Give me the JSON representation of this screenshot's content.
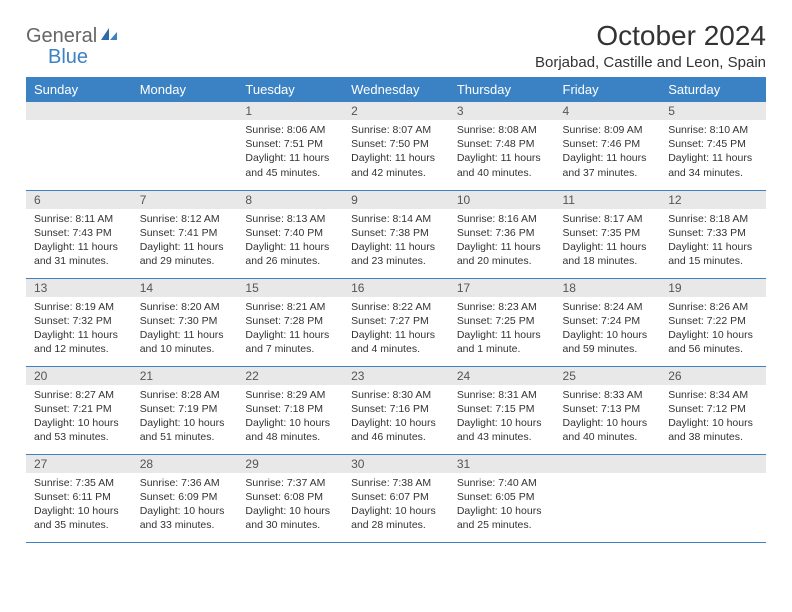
{
  "logo": {
    "part1": "General",
    "part2": "Blue"
  },
  "title": "October 2024",
  "location": "Borjabad, Castille and Leon, Spain",
  "colors": {
    "header_bg": "#3b82c4",
    "header_text": "#ffffff",
    "daynum_bg": "#e8e8e8",
    "border": "#3b82c4",
    "text": "#333333",
    "background": "#ffffff"
  },
  "weekdays": [
    "Sunday",
    "Monday",
    "Tuesday",
    "Wednesday",
    "Thursday",
    "Friday",
    "Saturday"
  ],
  "weeks": [
    [
      {
        "n": "",
        "lines": []
      },
      {
        "n": "",
        "lines": []
      },
      {
        "n": "1",
        "lines": [
          "Sunrise: 8:06 AM",
          "Sunset: 7:51 PM",
          "Daylight: 11 hours",
          "and 45 minutes."
        ]
      },
      {
        "n": "2",
        "lines": [
          "Sunrise: 8:07 AM",
          "Sunset: 7:50 PM",
          "Daylight: 11 hours",
          "and 42 minutes."
        ]
      },
      {
        "n": "3",
        "lines": [
          "Sunrise: 8:08 AM",
          "Sunset: 7:48 PM",
          "Daylight: 11 hours",
          "and 40 minutes."
        ]
      },
      {
        "n": "4",
        "lines": [
          "Sunrise: 8:09 AM",
          "Sunset: 7:46 PM",
          "Daylight: 11 hours",
          "and 37 minutes."
        ]
      },
      {
        "n": "5",
        "lines": [
          "Sunrise: 8:10 AM",
          "Sunset: 7:45 PM",
          "Daylight: 11 hours",
          "and 34 minutes."
        ]
      }
    ],
    [
      {
        "n": "6",
        "lines": [
          "Sunrise: 8:11 AM",
          "Sunset: 7:43 PM",
          "Daylight: 11 hours",
          "and 31 minutes."
        ]
      },
      {
        "n": "7",
        "lines": [
          "Sunrise: 8:12 AM",
          "Sunset: 7:41 PM",
          "Daylight: 11 hours",
          "and 29 minutes."
        ]
      },
      {
        "n": "8",
        "lines": [
          "Sunrise: 8:13 AM",
          "Sunset: 7:40 PM",
          "Daylight: 11 hours",
          "and 26 minutes."
        ]
      },
      {
        "n": "9",
        "lines": [
          "Sunrise: 8:14 AM",
          "Sunset: 7:38 PM",
          "Daylight: 11 hours",
          "and 23 minutes."
        ]
      },
      {
        "n": "10",
        "lines": [
          "Sunrise: 8:16 AM",
          "Sunset: 7:36 PM",
          "Daylight: 11 hours",
          "and 20 minutes."
        ]
      },
      {
        "n": "11",
        "lines": [
          "Sunrise: 8:17 AM",
          "Sunset: 7:35 PM",
          "Daylight: 11 hours",
          "and 18 minutes."
        ]
      },
      {
        "n": "12",
        "lines": [
          "Sunrise: 8:18 AM",
          "Sunset: 7:33 PM",
          "Daylight: 11 hours",
          "and 15 minutes."
        ]
      }
    ],
    [
      {
        "n": "13",
        "lines": [
          "Sunrise: 8:19 AM",
          "Sunset: 7:32 PM",
          "Daylight: 11 hours",
          "and 12 minutes."
        ]
      },
      {
        "n": "14",
        "lines": [
          "Sunrise: 8:20 AM",
          "Sunset: 7:30 PM",
          "Daylight: 11 hours",
          "and 10 minutes."
        ]
      },
      {
        "n": "15",
        "lines": [
          "Sunrise: 8:21 AM",
          "Sunset: 7:28 PM",
          "Daylight: 11 hours",
          "and 7 minutes."
        ]
      },
      {
        "n": "16",
        "lines": [
          "Sunrise: 8:22 AM",
          "Sunset: 7:27 PM",
          "Daylight: 11 hours",
          "and 4 minutes."
        ]
      },
      {
        "n": "17",
        "lines": [
          "Sunrise: 8:23 AM",
          "Sunset: 7:25 PM",
          "Daylight: 11 hours",
          "and 1 minute."
        ]
      },
      {
        "n": "18",
        "lines": [
          "Sunrise: 8:24 AM",
          "Sunset: 7:24 PM",
          "Daylight: 10 hours",
          "and 59 minutes."
        ]
      },
      {
        "n": "19",
        "lines": [
          "Sunrise: 8:26 AM",
          "Sunset: 7:22 PM",
          "Daylight: 10 hours",
          "and 56 minutes."
        ]
      }
    ],
    [
      {
        "n": "20",
        "lines": [
          "Sunrise: 8:27 AM",
          "Sunset: 7:21 PM",
          "Daylight: 10 hours",
          "and 53 minutes."
        ]
      },
      {
        "n": "21",
        "lines": [
          "Sunrise: 8:28 AM",
          "Sunset: 7:19 PM",
          "Daylight: 10 hours",
          "and 51 minutes."
        ]
      },
      {
        "n": "22",
        "lines": [
          "Sunrise: 8:29 AM",
          "Sunset: 7:18 PM",
          "Daylight: 10 hours",
          "and 48 minutes."
        ]
      },
      {
        "n": "23",
        "lines": [
          "Sunrise: 8:30 AM",
          "Sunset: 7:16 PM",
          "Daylight: 10 hours",
          "and 46 minutes."
        ]
      },
      {
        "n": "24",
        "lines": [
          "Sunrise: 8:31 AM",
          "Sunset: 7:15 PM",
          "Daylight: 10 hours",
          "and 43 minutes."
        ]
      },
      {
        "n": "25",
        "lines": [
          "Sunrise: 8:33 AM",
          "Sunset: 7:13 PM",
          "Daylight: 10 hours",
          "and 40 minutes."
        ]
      },
      {
        "n": "26",
        "lines": [
          "Sunrise: 8:34 AM",
          "Sunset: 7:12 PM",
          "Daylight: 10 hours",
          "and 38 minutes."
        ]
      }
    ],
    [
      {
        "n": "27",
        "lines": [
          "Sunrise: 7:35 AM",
          "Sunset: 6:11 PM",
          "Daylight: 10 hours",
          "and 35 minutes."
        ]
      },
      {
        "n": "28",
        "lines": [
          "Sunrise: 7:36 AM",
          "Sunset: 6:09 PM",
          "Daylight: 10 hours",
          "and 33 minutes."
        ]
      },
      {
        "n": "29",
        "lines": [
          "Sunrise: 7:37 AM",
          "Sunset: 6:08 PM",
          "Daylight: 10 hours",
          "and 30 minutes."
        ]
      },
      {
        "n": "30",
        "lines": [
          "Sunrise: 7:38 AM",
          "Sunset: 6:07 PM",
          "Daylight: 10 hours",
          "and 28 minutes."
        ]
      },
      {
        "n": "31",
        "lines": [
          "Sunrise: 7:40 AM",
          "Sunset: 6:05 PM",
          "Daylight: 10 hours",
          "and 25 minutes."
        ]
      },
      {
        "n": "",
        "lines": []
      },
      {
        "n": "",
        "lines": []
      }
    ]
  ]
}
